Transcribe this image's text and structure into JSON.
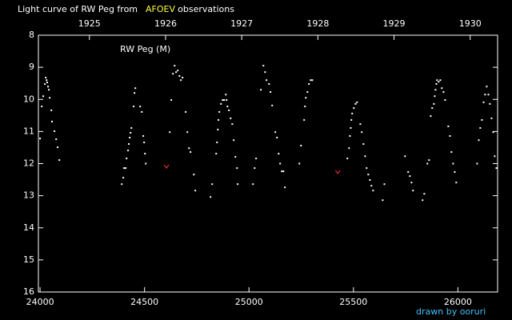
{
  "chart_data": {
    "type": "scatter",
    "title_prefix": "Light curve of RW Peg from",
    "source": "AFOEV",
    "source_color": "#ffff40",
    "title_suffix": "observations",
    "label": "RW Peg (M)",
    "credit": "drawn by ooruri",
    "credit_color": "#40c0ff",
    "xlim": [
      23992,
      26190
    ],
    "xticks": [
      24000,
      24500,
      25000,
      25500,
      26000
    ],
    "x2lim": [
      1924.33,
      1930.36
    ],
    "x2ticks": [
      1925,
      1926,
      1927,
      1928,
      1929,
      1930
    ],
    "ylim": [
      16,
      8
    ],
    "yticks": [
      8,
      9,
      10,
      11,
      12,
      13,
      14,
      15,
      16
    ],
    "series": [
      {
        "color": "#ffffff",
        "marker": "dot",
        "x": [
          24000,
          24008,
          24015,
          24023,
          24027,
          24031,
          24034,
          24038,
          24042,
          24046,
          24054,
          24057,
          24069,
          24077,
          24084,
          24092,
          24391,
          24398,
          24402,
          24410,
          24414,
          24421,
          24425,
          24429,
          24433,
          24437,
          24448,
          24452,
          24456,
          24479,
          24487,
          24494,
          24498,
          24502,
          24506,
          24621,
          24628,
          24636,
          24644,
          24651,
          24659,
          24667,
          24674,
          24682,
          24697,
          24705,
          24713,
          24720,
          24736,
          24743,
          24816,
          24824,
          24843,
          24847,
          24851,
          24854,
          24858,
          24866,
          24874,
          24881,
          24889,
          24893,
          24897,
          24904,
          24912,
          24920,
          24927,
          24935,
          24943,
          24946,
          25019,
          25027,
          25034,
          25057,
          25069,
          25077,
          25084,
          25096,
          25103,
          25111,
          25126,
          25134,
          25142,
          25149,
          25157,
          25165,
          25172,
          25241,
          25249,
          25264,
          25268,
          25272,
          25280,
          25287,
          25295,
          25303,
          25471,
          25479,
          25483,
          25487,
          25490,
          25494,
          25502,
          25510,
          25517,
          25533,
          25540,
          25548,
          25556,
          25563,
          25571,
          25579,
          25586,
          25594,
          25640,
          25648,
          25747,
          25762,
          25770,
          25778,
          25785,
          25831,
          25839,
          25854,
          25862,
          25870,
          25877,
          25885,
          25889,
          25893,
          25897,
          25900,
          25908,
          25916,
          25923,
          25931,
          25939,
          25954,
          25962,
          25969,
          25977,
          25985,
          25992,
          26092,
          26100,
          26107,
          26115,
          26123,
          26130,
          26138,
          26146,
          26153,
          26161,
          26169,
          26176,
          26184
        ],
        "values": [
          11.22,
          10.22,
          9.9,
          9.52,
          9.32,
          9.4,
          9.47,
          9.6,
          9.7,
          9.95,
          10.34,
          10.69,
          10.99,
          11.24,
          11.49,
          11.89,
          12.64,
          12.44,
          12.14,
          12.14,
          11.84,
          11.59,
          11.39,
          11.19,
          11.04,
          10.89,
          10.22,
          9.8,
          9.65,
          10.22,
          10.39,
          11.14,
          11.34,
          11.69,
          12.0,
          11.02,
          10.02,
          9.2,
          8.95,
          9.15,
          9.1,
          9.27,
          9.4,
          9.32,
          10.39,
          11.02,
          11.52,
          11.64,
          12.34,
          12.84,
          13.04,
          12.64,
          11.69,
          11.34,
          10.94,
          10.64,
          10.39,
          10.14,
          10.02,
          10.02,
          9.85,
          10.02,
          10.22,
          10.34,
          10.59,
          10.77,
          11.27,
          11.79,
          12.14,
          12.64,
          12.64,
          12.14,
          11.84,
          9.7,
          8.95,
          9.15,
          9.4,
          9.52,
          9.77,
          10.19,
          11.02,
          11.19,
          11.69,
          12.0,
          12.24,
          12.24,
          12.74,
          12.0,
          11.44,
          10.64,
          10.22,
          9.95,
          9.77,
          9.52,
          9.4,
          9.4,
          11.84,
          11.52,
          11.14,
          10.89,
          10.64,
          10.44,
          10.27,
          10.14,
          10.09,
          10.77,
          11.02,
          11.39,
          11.77,
          12.14,
          12.34,
          12.51,
          12.69,
          12.84,
          13.14,
          12.64,
          11.77,
          12.26,
          12.39,
          12.59,
          12.84,
          13.14,
          12.94,
          12.0,
          11.89,
          10.52,
          10.27,
          10.14,
          9.9,
          9.7,
          9.52,
          9.4,
          9.45,
          9.4,
          9.65,
          9.77,
          10.02,
          10.84,
          11.14,
          11.64,
          12.0,
          12.26,
          12.59,
          12.0,
          11.27,
          10.89,
          10.64,
          10.09,
          9.85,
          9.6,
          9.85,
          10.14,
          10.59,
          11.02,
          11.77,
          12.14
        ]
      },
      {
        "color": "#ff3030",
        "marker": "v",
        "x": [
          24605,
          25425
        ],
        "values": [
          12.09,
          12.26
        ]
      }
    ]
  }
}
